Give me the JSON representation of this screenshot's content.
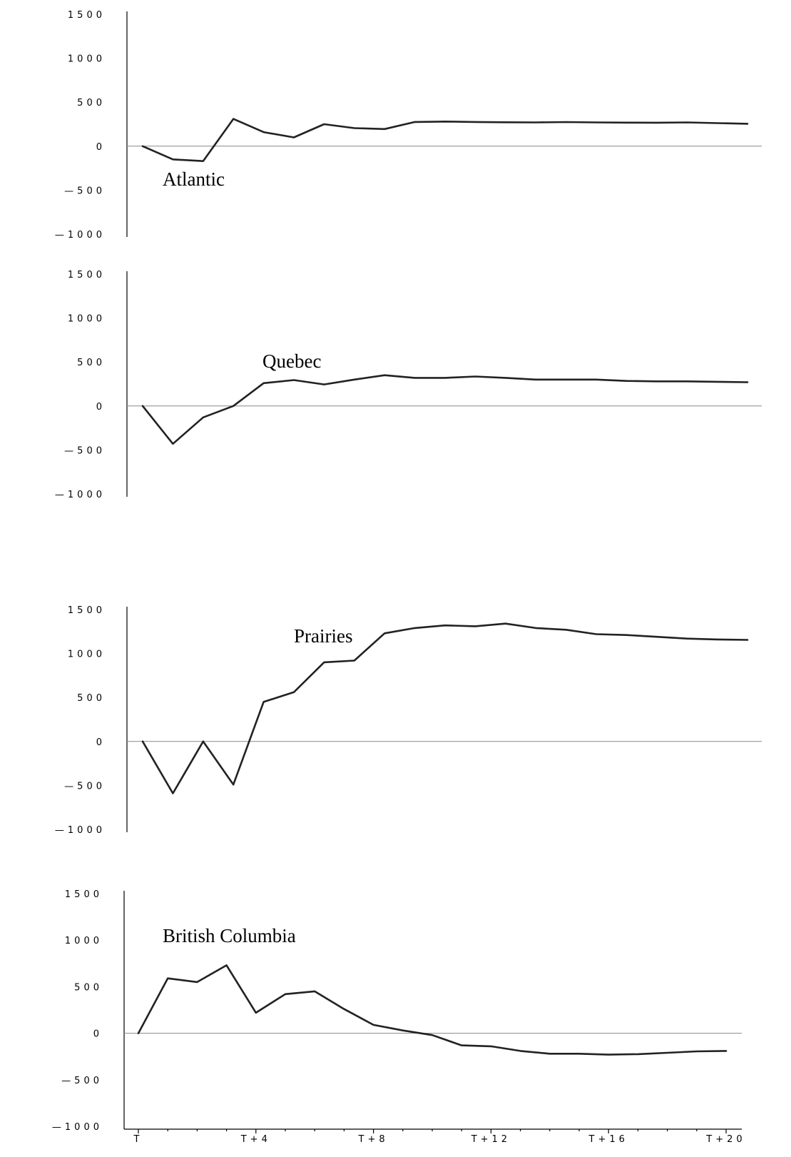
{
  "chart_data": [
    {
      "type": "line",
      "label": "Atlantic",
      "ylim": [
        -1000,
        1500
      ],
      "yticks": [
        1500,
        1000,
        500,
        0,
        -500,
        -1000
      ],
      "x": [
        0,
        1,
        2,
        3,
        4,
        5,
        6,
        7,
        8,
        9,
        10,
        11,
        12,
        13,
        14,
        15,
        16,
        17,
        18,
        19,
        20
      ],
      "values": [
        0,
        -150,
        -170,
        310,
        160,
        100,
        250,
        205,
        195,
        275,
        280,
        275,
        272,
        270,
        274,
        270,
        268,
        267,
        270,
        262,
        255
      ]
    },
    {
      "type": "line",
      "label": "Quebec",
      "ylim": [
        -1000,
        1500
      ],
      "yticks": [
        1500,
        1000,
        500,
        0,
        -500,
        -1000
      ],
      "x": [
        0,
        1,
        2,
        3,
        4,
        5,
        6,
        7,
        8,
        9,
        10,
        11,
        12,
        13,
        14,
        15,
        16,
        17,
        18,
        19,
        20
      ],
      "values": [
        0,
        -430,
        -130,
        0,
        260,
        295,
        245,
        300,
        350,
        320,
        320,
        335,
        320,
        300,
        300,
        300,
        285,
        280,
        280,
        275,
        270
      ]
    },
    {
      "type": "line",
      "label": "Prairies",
      "ylim": [
        -1000,
        1500
      ],
      "yticks": [
        1500,
        1000,
        500,
        0,
        -500,
        -1000
      ],
      "x": [
        0,
        1,
        2,
        3,
        4,
        5,
        6,
        7,
        8,
        9,
        10,
        11,
        12,
        13,
        14,
        15,
        16,
        17,
        18,
        19,
        20
      ],
      "values": [
        0,
        -590,
        0,
        -490,
        450,
        560,
        900,
        920,
        1230,
        1290,
        1320,
        1310,
        1340,
        1290,
        1270,
        1220,
        1210,
        1190,
        1170,
        1160,
        1155
      ]
    },
    {
      "type": "line",
      "label": "British Columbia",
      "ylim": [
        -1000,
        1500
      ],
      "yticks": [
        1500,
        1000,
        500,
        0,
        -500,
        -1000
      ],
      "xticks": [
        "T",
        "T+4",
        "T+8",
        "T+12",
        "T+16",
        "T+20"
      ],
      "x": [
        0,
        1,
        2,
        3,
        4,
        5,
        6,
        7,
        8,
        9,
        10,
        11,
        12,
        13,
        14,
        15,
        16,
        17,
        18,
        19,
        20
      ],
      "values": [
        0,
        590,
        550,
        730,
        220,
        420,
        450,
        260,
        90,
        30,
        -20,
        -130,
        -140,
        -190,
        -220,
        -220,
        -230,
        -225,
        -210,
        -195,
        -190
      ]
    }
  ]
}
